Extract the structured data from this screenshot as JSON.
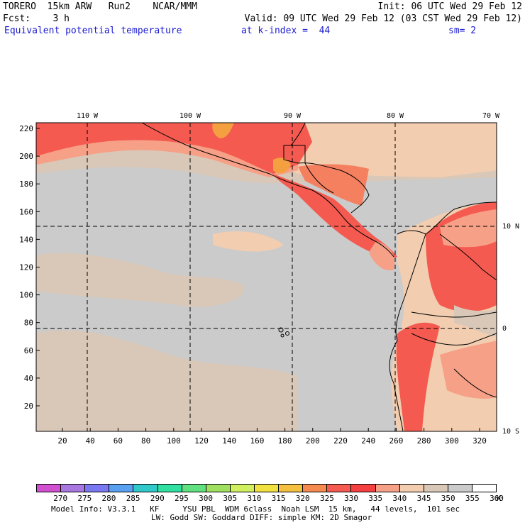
{
  "header": {
    "model": "TORERO  15km ARW   Run2    NCAR/MMM",
    "init": "Init: 06 UTC Wed 29 Feb 12",
    "fcst_label": "Fcst:    3 h",
    "valid": "Valid: 09 UTC Wed 29 Feb 12 (03 CST Wed 29 Feb 12)",
    "field": "Equivalent potential temperature",
    "kindex": "at k-index =  44",
    "smoothing": "sm= 2"
  },
  "map": {
    "lon_labels": [
      "110 W",
      "100 W",
      "90 W",
      "80 W",
      "70 W"
    ],
    "lat_labels": [
      "10 N",
      "0",
      "10 S"
    ],
    "y_ticks": [
      "220",
      "200",
      "180",
      "160",
      "140",
      "120",
      "100",
      "80",
      "60",
      "40",
      "20"
    ],
    "x_ticks": [
      "20",
      "40",
      "60",
      "80",
      "100",
      "120",
      "140",
      "160",
      "180",
      "200",
      "220",
      "240",
      "260",
      "280",
      "300",
      "320"
    ],
    "colors": {
      "grey_bg": "#cbcbcb",
      "tan": "#d9c8b8",
      "peach": "#f2cdb0",
      "salmon": "#f6a088",
      "red": "#f45a50",
      "coral": "#f58060",
      "orange": "#f5a040"
    }
  },
  "colorbar": {
    "labels": [
      "270",
      "275",
      "280",
      "285",
      "290",
      "295",
      "300",
      "305",
      "310",
      "315",
      "320",
      "325",
      "330",
      "335",
      "340",
      "345",
      "350",
      "355",
      "360"
    ],
    "unit": "K",
    "colors": [
      "#d050d0",
      "#a878e0",
      "#7a78f0",
      "#5aa0f0",
      "#30c8c8",
      "#30e0a0",
      "#60e080",
      "#a0e060",
      "#d0f060",
      "#f0e040",
      "#f5c040",
      "#f58a50",
      "#f45a50",
      "#f44040",
      "#f6a088",
      "#f2cdb0",
      "#d9c8b8",
      "#cbcbcb",
      "#ffffff"
    ]
  },
  "footer": {
    "line1": "Model Info: V3.3.1   KF     YSU PBL  WDM 6class  Noah LSM  15 km,   44 levels,  101 sec",
    "line2": "LW: Godd SW: Goddard DIFF: simple KM: 2D Smagor"
  }
}
